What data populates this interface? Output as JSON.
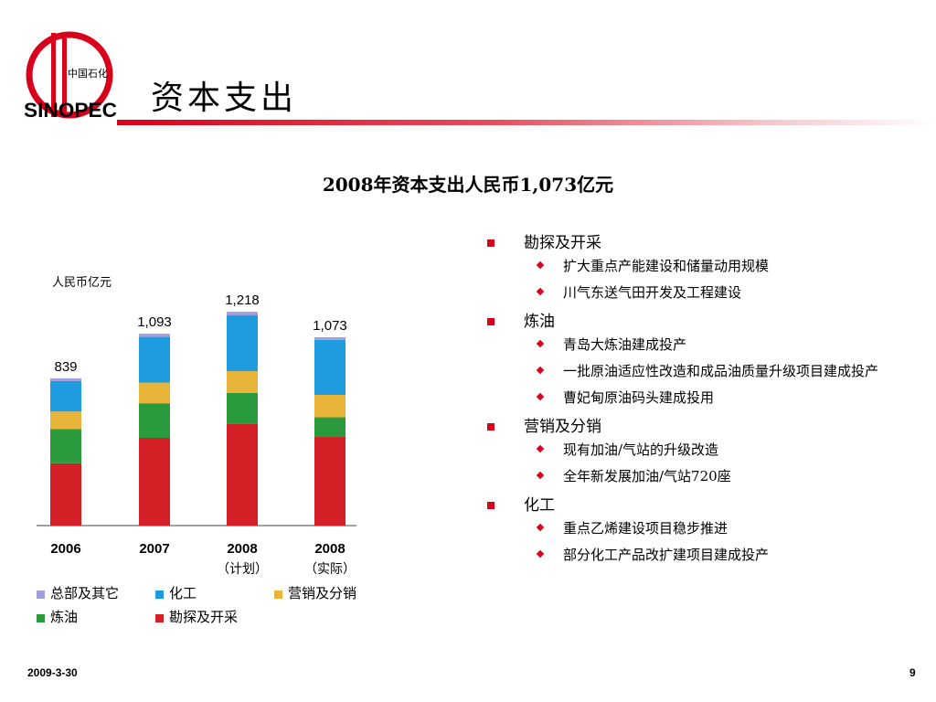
{
  "header": {
    "logo_brand": "SINOPEC",
    "logo_cn": "中国石化",
    "title": "资本支出"
  },
  "subtitle": "2008年资本支出人民币1,073亿元",
  "chart_data": {
    "type": "bar",
    "stacked": true,
    "unit_label": "人民币亿元",
    "categories": [
      "2006",
      "2007",
      "2008",
      "2008"
    ],
    "category_notes": [
      "",
      "",
      "（计划）",
      "（实际）"
    ],
    "totals": [
      839,
      1093,
      1218,
      1073
    ],
    "total_labels": [
      "839",
      "1,093",
      "1,218",
      "1,073"
    ],
    "series": [
      {
        "name": "勘探及开采",
        "color": "#d42128",
        "values": [
          355,
          500,
          580,
          505
        ]
      },
      {
        "name": "炼油",
        "color": "#2a9a3c",
        "values": [
          195,
          197,
          176,
          112
        ]
      },
      {
        "name": "营销及分销",
        "color": "#e8b43a",
        "values": [
          100,
          118,
          124,
          128
        ]
      },
      {
        "name": "化工",
        "color": "#1f9be0",
        "values": [
          174,
          260,
          318,
          313
        ]
      },
      {
        "name": "总部及其它",
        "color": "#9f9fe0",
        "values": [
          15,
          18,
          20,
          15
        ]
      }
    ],
    "legend_order": [
      "总部及其它",
      "化工",
      "营销及分销",
      "炼油",
      "勘探及开采"
    ],
    "ylim": [
      0,
      1250
    ],
    "grid": false
  },
  "bullets": [
    {
      "title": "勘探及开采",
      "items": [
        "扩大重点产能建设和储量动用规模",
        "川气东送气田开发及工程建设"
      ]
    },
    {
      "title": "炼油",
      "items": [
        "青岛大炼油建成投产",
        "一批原油适应性改造和成品油质量升级项目建成投产",
        "曹妃甸原油码头建成投用"
      ]
    },
    {
      "title": "营销及分销",
      "items": [
        "现有加油/气站的升级改造",
        "全年新发展加油/气站720座"
      ]
    },
    {
      "title": "化工",
      "items": [
        "重点乙烯建设项目稳步推进",
        "部分化工产品改扩建项目建成投产"
      ]
    }
  ],
  "footer": {
    "date": "2009-3-30",
    "page": "9"
  }
}
